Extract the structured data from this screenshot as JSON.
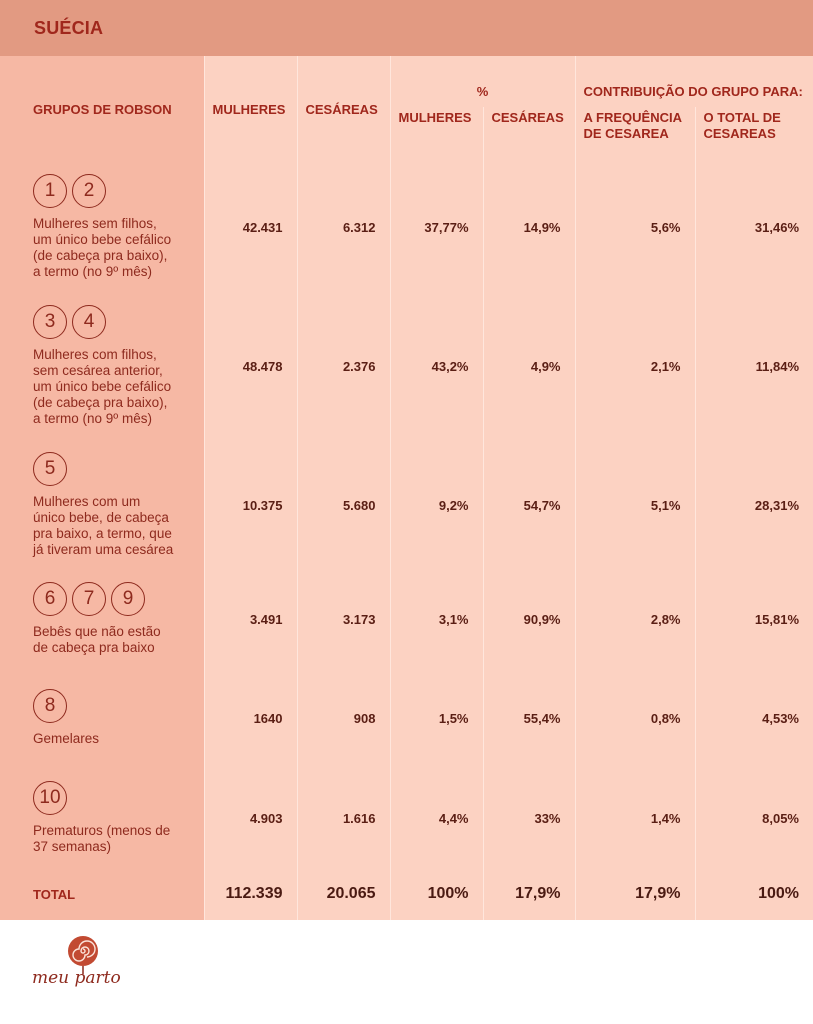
{
  "title": "SUÉCIA",
  "headers": {
    "grupos": "GRUPOS DE ROBSON",
    "mulheres": "MULHERES",
    "cesareas": "CESÁREAS",
    "percent": "%",
    "pct_mulheres": "MULHERES",
    "pct_cesareas": "CESÁREAS",
    "contribuicao": "CONTRIBUIÇÃO DO GRUPO PARA:",
    "frequencia": "A FREQUÊNCIA\nDE CESAREA",
    "total_cesareas": "O TOTAL DE\nCESAREAS"
  },
  "rows": [
    {
      "badges": [
        "1",
        "2"
      ],
      "desc": "Mulheres sem filhos,\num único bebe cefálico\n(de cabeça pra baixo),\na termo (no 9º mês)",
      "mulheres": "42.431",
      "cesareas": "6.312",
      "pct_mulheres": "37,77%",
      "pct_cesareas": "14,9%",
      "frequencia": "5,6%",
      "total": "31,46%"
    },
    {
      "badges": [
        "3",
        "4"
      ],
      "desc": "Mulheres com filhos,\nsem cesárea anterior,\num único bebe cefálico\n(de cabeça pra baixo),\na termo (no 9º mês)",
      "mulheres": "48.478",
      "cesareas": "2.376",
      "pct_mulheres": "43,2%",
      "pct_cesareas": "4,9%",
      "frequencia": "2,1%",
      "total": "11,84%"
    },
    {
      "badges": [
        "5"
      ],
      "desc": "Mulheres com um\núnico bebe, de cabeça\npra baixo, a termo, que\njá tiveram uma cesárea",
      "mulheres": "10.375",
      "cesareas": "5.680",
      "pct_mulheres": "9,2%",
      "pct_cesareas": "54,7%",
      "frequencia": "5,1%",
      "total": "28,31%"
    },
    {
      "badges": [
        "6",
        "7",
        "9"
      ],
      "desc": "Bebês que não estão\nde cabeça pra baixo",
      "mulheres": "3.491",
      "cesareas": "3.173",
      "pct_mulheres": "3,1%",
      "pct_cesareas": "90,9%",
      "frequencia": "2,8%",
      "total": "15,81%"
    },
    {
      "badges": [
        "8"
      ],
      "desc": "Gemelares",
      "mulheres": "1640",
      "cesareas": "908",
      "pct_mulheres": "1,5%",
      "pct_cesareas": "55,4%",
      "frequencia": "0,8%",
      "total": "4,53%"
    },
    {
      "badges": [
        "10"
      ],
      "desc": "Prematuros (menos de\n37 semanas)",
      "mulheres": "4.903",
      "cesareas": "1.616",
      "pct_mulheres": "4,4%",
      "pct_cesareas": "33%",
      "frequencia": "1,4%",
      "total": "8,05%"
    }
  ],
  "total": {
    "label": "TOTAL",
    "mulheres": "112.339",
    "cesareas": "20.065",
    "pct_mulheres": "100%",
    "pct_cesareas": "17,9%",
    "frequencia": "17,9%",
    "total": "100%"
  },
  "logo": {
    "text": "meu parto",
    "icon": "spiral-heart-icon",
    "color": "#b23a26"
  },
  "colors": {
    "title_bar": "#e29a82",
    "group_col": "#f6b8a4",
    "cells": "#fcd2c2",
    "text": "#a0271c"
  }
}
